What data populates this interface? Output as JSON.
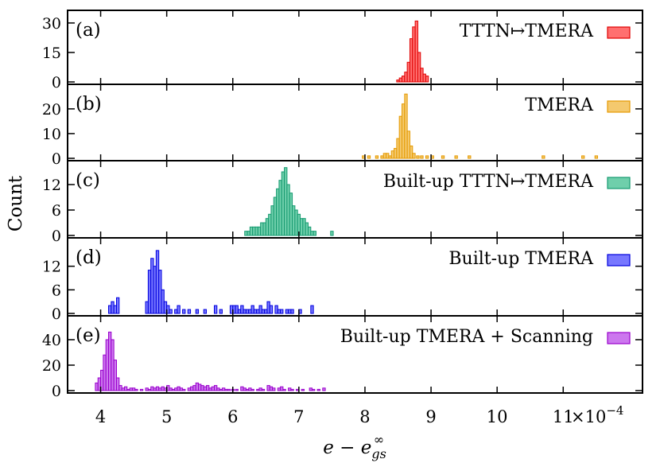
{
  "chart_data": {
    "type": "bar",
    "layout": "stacked-panels-shared-x",
    "ylabel": "Count",
    "xlabel": "e − e∞gs",
    "xlabel_parts": {
      "base": "e − e",
      "sup": "∞",
      "sub": "gs"
    },
    "x_scale_label": "×10−4",
    "x_scale_parts": {
      "times": "×10",
      "exp": "−4"
    },
    "xlim": [
      3.5,
      12.2
    ],
    "xticks": [
      4,
      5,
      6,
      7,
      8,
      9,
      10,
      11
    ],
    "xtick_labels": [
      "4",
      "5",
      "6",
      "7",
      "8",
      "9",
      "10",
      "11"
    ],
    "legend_position": "top-right",
    "panels": [
      {
        "tag": "(a)",
        "legend": "TTTN↦TMERA",
        "color": "#ff6f6f",
        "edge_color": "#e00000",
        "ylim": [
          0,
          34
        ],
        "yticks": [
          0,
          15,
          30
        ],
        "ytick_labels": [
          "0",
          "15",
          "30"
        ],
        "bin_width": 0.04,
        "bars": [
          [
            8.5,
            1
          ],
          [
            8.54,
            2
          ],
          [
            8.58,
            3
          ],
          [
            8.62,
            5
          ],
          [
            8.66,
            10
          ],
          [
            8.7,
            22
          ],
          [
            8.74,
            28
          ],
          [
            8.78,
            31
          ],
          [
            8.82,
            15
          ],
          [
            8.86,
            7
          ],
          [
            8.9,
            4
          ],
          [
            8.94,
            3
          ]
        ]
      },
      {
        "tag": "(b)",
        "legend": "TMERA",
        "color": "#f4c96e",
        "edge_color": "#e59a00",
        "ylim": [
          0,
          28
        ],
        "yticks": [
          0,
          10,
          20
        ],
        "ytick_labels": [
          "0",
          "10",
          "20"
        ],
        "bin_width": 0.04,
        "bars": [
          [
            7.98,
            1
          ],
          [
            8.06,
            1
          ],
          [
            8.18,
            1
          ],
          [
            8.26,
            1
          ],
          [
            8.3,
            2
          ],
          [
            8.34,
            2
          ],
          [
            8.38,
            1
          ],
          [
            8.42,
            3
          ],
          [
            8.46,
            4
          ],
          [
            8.5,
            8
          ],
          [
            8.54,
            17
          ],
          [
            8.58,
            22
          ],
          [
            8.62,
            26
          ],
          [
            8.66,
            11
          ],
          [
            8.7,
            5
          ],
          [
            8.74,
            2
          ],
          [
            8.8,
            1
          ],
          [
            8.86,
            1
          ],
          [
            8.94,
            1
          ],
          [
            9.02,
            1
          ],
          [
            9.18,
            1
          ],
          [
            9.38,
            1
          ],
          [
            9.58,
            1
          ],
          [
            10.7,
            1
          ],
          [
            11.3,
            1
          ],
          [
            11.5,
            1
          ]
        ]
      },
      {
        "tag": "(c)",
        "legend": "Built-up TTTN↦TMERA",
        "color": "#6fcfab",
        "edge_color": "#159a70",
        "ylim": [
          0,
          16.5
        ],
        "yticks": [
          0,
          6,
          12
        ],
        "ytick_labels": [
          "0",
          "6",
          "12"
        ],
        "bin_width": 0.04,
        "bars": [
          [
            6.2,
            1
          ],
          [
            6.24,
            1
          ],
          [
            6.28,
            2
          ],
          [
            6.32,
            2
          ],
          [
            6.36,
            2
          ],
          [
            6.4,
            2
          ],
          [
            6.44,
            3
          ],
          [
            6.48,
            3
          ],
          [
            6.52,
            4
          ],
          [
            6.56,
            5
          ],
          [
            6.6,
            7
          ],
          [
            6.64,
            9
          ],
          [
            6.68,
            11
          ],
          [
            6.72,
            13
          ],
          [
            6.76,
            15
          ],
          [
            6.8,
            16
          ],
          [
            6.84,
            12
          ],
          [
            6.88,
            10
          ],
          [
            6.92,
            7
          ],
          [
            6.96,
            6
          ],
          [
            7.0,
            5
          ],
          [
            7.04,
            4
          ],
          [
            7.08,
            4
          ],
          [
            7.12,
            3
          ],
          [
            7.16,
            2
          ],
          [
            7.2,
            1
          ],
          [
            7.24,
            1
          ],
          [
            7.5,
            1
          ]
        ]
      },
      {
        "tag": "(d)",
        "legend": "Built-up TMERA",
        "color": "#7777ff",
        "edge_color": "#0000dd",
        "ylim": [
          0,
          18
        ],
        "yticks": [
          0,
          6,
          12
        ],
        "ytick_labels": [
          "0",
          "6",
          "12"
        ],
        "bin_width": 0.04,
        "bars": [
          [
            4.14,
            2
          ],
          [
            4.18,
            3
          ],
          [
            4.22,
            2
          ],
          [
            4.26,
            4
          ],
          [
            4.7,
            3
          ],
          [
            4.74,
            11
          ],
          [
            4.78,
            14
          ],
          [
            4.82,
            12
          ],
          [
            4.86,
            16
          ],
          [
            4.9,
            11
          ],
          [
            4.94,
            6
          ],
          [
            4.98,
            3
          ],
          [
            5.02,
            2
          ],
          [
            5.06,
            1
          ],
          [
            5.14,
            1
          ],
          [
            5.18,
            2
          ],
          [
            5.26,
            1
          ],
          [
            5.34,
            1
          ],
          [
            5.46,
            1
          ],
          [
            5.58,
            1
          ],
          [
            5.74,
            2
          ],
          [
            5.82,
            1
          ],
          [
            5.98,
            2
          ],
          [
            6.02,
            2
          ],
          [
            6.06,
            2
          ],
          [
            6.1,
            1
          ],
          [
            6.14,
            2
          ],
          [
            6.18,
            1
          ],
          [
            6.22,
            1
          ],
          [
            6.26,
            1
          ],
          [
            6.3,
            2
          ],
          [
            6.34,
            1
          ],
          [
            6.38,
            1
          ],
          [
            6.42,
            2
          ],
          [
            6.46,
            1
          ],
          [
            6.5,
            1
          ],
          [
            6.54,
            3
          ],
          [
            6.58,
            2
          ],
          [
            6.66,
            2
          ],
          [
            6.7,
            1
          ],
          [
            6.74,
            1
          ],
          [
            6.82,
            1
          ],
          [
            6.86,
            1
          ],
          [
            6.9,
            1
          ],
          [
            7.02,
            1
          ],
          [
            7.2,
            2
          ]
        ]
      },
      {
        "tag": "(e)",
        "legend": "Built-up TMERA + Scanning",
        "color": "#cc77ee",
        "edge_color": "#9900cc",
        "ylim": [
          0,
          55
        ],
        "yticks": [
          0,
          20,
          40
        ],
        "ytick_labels": [
          "0",
          "20",
          "40"
        ],
        "bin_width": 0.04,
        "bars": [
          [
            3.94,
            6
          ],
          [
            3.98,
            10
          ],
          [
            4.02,
            16
          ],
          [
            4.06,
            28
          ],
          [
            4.1,
            40
          ],
          [
            4.14,
            46
          ],
          [
            4.18,
            40
          ],
          [
            4.22,
            24
          ],
          [
            4.26,
            10
          ],
          [
            4.3,
            4
          ],
          [
            4.34,
            2
          ],
          [
            4.38,
            3
          ],
          [
            4.42,
            1
          ],
          [
            4.46,
            2
          ],
          [
            4.5,
            2
          ],
          [
            4.54,
            1
          ],
          [
            4.62,
            1
          ],
          [
            4.7,
            2
          ],
          [
            4.74,
            1
          ],
          [
            4.78,
            3
          ],
          [
            4.82,
            2
          ],
          [
            4.86,
            3
          ],
          [
            4.9,
            2
          ],
          [
            4.94,
            3
          ],
          [
            4.98,
            2
          ],
          [
            5.02,
            4
          ],
          [
            5.06,
            2
          ],
          [
            5.1,
            1
          ],
          [
            5.14,
            2
          ],
          [
            5.18,
            3
          ],
          [
            5.22,
            2
          ],
          [
            5.26,
            1
          ],
          [
            5.34,
            2
          ],
          [
            5.38,
            3
          ],
          [
            5.42,
            4
          ],
          [
            5.46,
            6
          ],
          [
            5.5,
            5
          ],
          [
            5.54,
            4
          ],
          [
            5.58,
            3
          ],
          [
            5.62,
            4
          ],
          [
            5.66,
            2
          ],
          [
            5.7,
            3
          ],
          [
            5.74,
            4
          ],
          [
            5.78,
            2
          ],
          [
            5.82,
            1
          ],
          [
            5.86,
            2
          ],
          [
            5.9,
            1
          ],
          [
            5.94,
            1
          ],
          [
            6.0,
            1
          ],
          [
            6.06,
            1
          ],
          [
            6.14,
            3
          ],
          [
            6.18,
            2
          ],
          [
            6.22,
            1
          ],
          [
            6.26,
            2
          ],
          [
            6.3,
            1
          ],
          [
            6.38,
            1
          ],
          [
            6.42,
            2
          ],
          [
            6.46,
            1
          ],
          [
            6.54,
            4
          ],
          [
            6.58,
            3
          ],
          [
            6.62,
            2
          ],
          [
            6.7,
            2
          ],
          [
            6.74,
            3
          ],
          [
            6.78,
            1
          ],
          [
            6.86,
            2
          ],
          [
            6.9,
            1
          ],
          [
            6.98,
            1
          ],
          [
            7.06,
            1
          ],
          [
            7.18,
            2
          ],
          [
            7.22,
            1
          ],
          [
            7.3,
            1
          ],
          [
            7.38,
            2
          ]
        ]
      }
    ]
  }
}
